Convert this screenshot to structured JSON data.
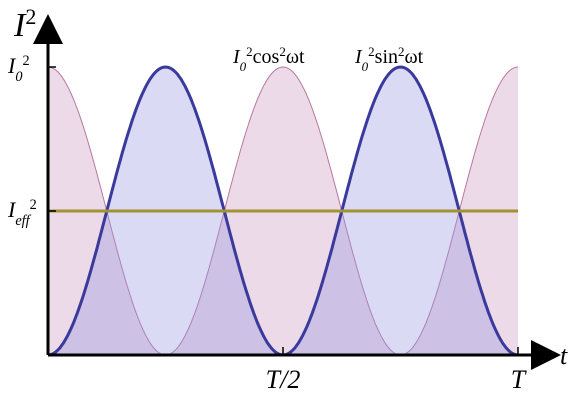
{
  "chart_data": {
    "type": "line",
    "y_label": [
      [
        "I",
        "i"
      ],
      [
        "2",
        "sup"
      ]
    ],
    "x_label": "t",
    "xlim": [
      0,
      1.079
    ],
    "ylim": [
      0,
      1.17
    ],
    "xticks": [
      {
        "value": 0.5,
        "label": "T/2"
      },
      {
        "value": 1,
        "label": "T"
      }
    ],
    "yticks": [
      {
        "value": 1,
        "label": [
          [
            "I",
            "i"
          ],
          [
            "0",
            "sub"
          ],
          [
            "2",
            "sup"
          ]
        ]
      },
      {
        "value": 0.5,
        "label": [
          [
            "I",
            "i"
          ],
          [
            "eff",
            "sub"
          ],
          [
            "2",
            "sup"
          ]
        ]
      }
    ],
    "annotations": [
      [
        [
          "I",
          "i"
        ],
        [
          "0",
          "sub"
        ],
        [
          "2",
          "sup"
        ],
        [
          "cos",
          ""
        ],
        [
          "2",
          "sup"
        ],
        [
          "ωt",
          ""
        ]
      ],
      [
        [
          "I",
          "i"
        ],
        [
          "0",
          "sub"
        ],
        [
          "2",
          "sup"
        ],
        [
          "sin",
          ""
        ],
        [
          "2",
          "sup"
        ],
        [
          "ωt",
          ""
        ]
      ]
    ]
  }
}
